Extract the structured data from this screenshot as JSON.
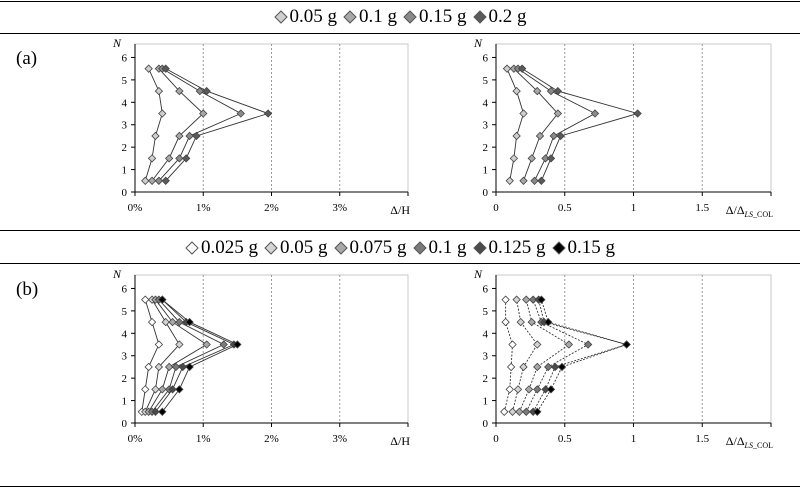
{
  "panels": [
    {
      "label": "(a)",
      "legend": [
        {
          "name": "0.05 g",
          "fill": "#cfcfcf"
        },
        {
          "name": "0.1 g",
          "fill": "#a8a8a8"
        },
        {
          "name": "0.15 g",
          "fill": "#8a8a8a"
        },
        {
          "name": "0.2 g",
          "fill": "#5a5a5a"
        }
      ]
    },
    {
      "label": "(b)",
      "legend": [
        {
          "name": "0.025 g",
          "fill": "#ffffff"
        },
        {
          "name": "0.05 g",
          "fill": "#d3d3d3"
        },
        {
          "name": "0.075 g",
          "fill": "#a8a8a8"
        },
        {
          "name": "0.1 g",
          "fill": "#7a7a7a"
        },
        {
          "name": "0.125 g",
          "fill": "#4a4a4a"
        },
        {
          "name": "0.15 g",
          "fill": "#000000"
        }
      ]
    }
  ],
  "chart_data": [
    {
      "id": "a-left",
      "type": "line",
      "ylabel": "N",
      "xlabel": "Δ/H",
      "xlim": [
        0,
        4
      ],
      "ylim": [
        0,
        6.6
      ],
      "x_ticks": [
        0,
        1,
        2,
        3
      ],
      "x_tick_labels": [
        "0%",
        "1%",
        "2%",
        "3%"
      ],
      "y_ticks": [
        0,
        1,
        2,
        3,
        4,
        5,
        6
      ],
      "y_tick_labels": [
        "0",
        "1",
        "2",
        "3",
        "4",
        "5",
        "6"
      ],
      "grid_x": [
        1,
        2,
        3
      ],
      "y": [
        0.5,
        1.5,
        2.5,
        3.5,
        4.5,
        5.5
      ],
      "series": [
        {
          "name": "0.05 g",
          "fill": "#cfcfcf",
          "line": "solid",
          "x": [
            0.15,
            0.25,
            0.3,
            0.4,
            0.35,
            0.2
          ]
        },
        {
          "name": "0.1 g",
          "fill": "#a8a8a8",
          "line": "solid",
          "x": [
            0.25,
            0.5,
            0.65,
            1.0,
            0.65,
            0.35
          ]
        },
        {
          "name": "0.15 g",
          "fill": "#8a8a8a",
          "line": "solid",
          "x": [
            0.35,
            0.65,
            0.8,
            1.55,
            0.95,
            0.4
          ]
        },
        {
          "name": "0.2 g",
          "fill": "#5a5a5a",
          "line": "solid",
          "x": [
            0.45,
            0.75,
            0.9,
            1.95,
            1.05,
            0.45
          ]
        }
      ]
    },
    {
      "id": "a-right",
      "type": "line",
      "ylabel": "N",
      "xlabel": "Δ/Δ",
      "xlabel_sub": "LS_COL",
      "xlim": [
        0,
        2
      ],
      "ylim": [
        0,
        6.6
      ],
      "x_ticks": [
        0,
        0.5,
        1,
        1.5
      ],
      "x_tick_labels": [
        "0",
        "0.5",
        "1",
        "1.5"
      ],
      "y_ticks": [
        0,
        1,
        2,
        3,
        4,
        5,
        6
      ],
      "y_tick_labels": [
        "0",
        "1",
        "2",
        "3",
        "4",
        "5",
        "6"
      ],
      "grid_x": [
        0.5,
        1,
        1.5
      ],
      "y": [
        0.5,
        1.5,
        2.5,
        3.5,
        4.5,
        5.5
      ],
      "series": [
        {
          "name": "0.05 g",
          "fill": "#cfcfcf",
          "line": "solid",
          "x": [
            0.1,
            0.13,
            0.15,
            0.2,
            0.15,
            0.08
          ]
        },
        {
          "name": "0.1 g",
          "fill": "#a8a8a8",
          "line": "solid",
          "x": [
            0.2,
            0.26,
            0.32,
            0.45,
            0.3,
            0.13
          ]
        },
        {
          "name": "0.15 g",
          "fill": "#8a8a8a",
          "line": "solid",
          "x": [
            0.28,
            0.36,
            0.42,
            0.72,
            0.4,
            0.16
          ]
        },
        {
          "name": "0.2 g",
          "fill": "#5a5a5a",
          "line": "solid",
          "x": [
            0.33,
            0.4,
            0.47,
            1.03,
            0.45,
            0.19
          ]
        }
      ]
    },
    {
      "id": "b-left",
      "type": "line",
      "ylabel": "N",
      "xlabel": "Δ/H",
      "xlim": [
        0,
        4
      ],
      "ylim": [
        0,
        6.6
      ],
      "x_ticks": [
        0,
        1,
        2,
        3
      ],
      "x_tick_labels": [
        "0%",
        "1%",
        "2%",
        "3%"
      ],
      "y_ticks": [
        0,
        1,
        2,
        3,
        4,
        5,
        6
      ],
      "y_tick_labels": [
        "0",
        "1",
        "2",
        "3",
        "4",
        "5",
        "6"
      ],
      "grid_x": [
        1,
        2,
        3
      ],
      "y": [
        0.5,
        1.5,
        2.5,
        3.5,
        4.5,
        5.5
      ],
      "series": [
        {
          "name": "0.025 g",
          "fill": "#ffffff",
          "line": "solid",
          "x": [
            0.1,
            0.15,
            0.2,
            0.35,
            0.25,
            0.15
          ]
        },
        {
          "name": "0.05 g",
          "fill": "#d3d3d3",
          "line": "solid",
          "x": [
            0.15,
            0.3,
            0.35,
            0.65,
            0.45,
            0.25
          ]
        },
        {
          "name": "0.075 g",
          "fill": "#a8a8a8",
          "line": "solid",
          "x": [
            0.2,
            0.4,
            0.5,
            1.05,
            0.55,
            0.3
          ]
        },
        {
          "name": "0.1 g",
          "fill": "#7a7a7a",
          "line": "solid",
          "x": [
            0.25,
            0.5,
            0.6,
            1.3,
            0.65,
            0.35
          ]
        },
        {
          "name": "0.125 g",
          "fill": "#4a4a4a",
          "line": "solid",
          "x": [
            0.3,
            0.55,
            0.7,
            1.45,
            0.75,
            0.4
          ]
        },
        {
          "name": "0.15 g",
          "fill": "#000000",
          "line": "solid",
          "x": [
            0.4,
            0.65,
            0.8,
            1.5,
            0.8,
            0.4
          ]
        }
      ]
    },
    {
      "id": "b-right",
      "type": "line",
      "ylabel": "N",
      "xlabel": "Δ/Δ",
      "xlabel_sub": "LS_COL",
      "xlim": [
        0,
        2
      ],
      "ylim": [
        0,
        6.6
      ],
      "x_ticks": [
        0,
        0.5,
        1,
        1.5
      ],
      "x_tick_labels": [
        "0",
        "0.5",
        "1",
        "1.5"
      ],
      "y_ticks": [
        0,
        1,
        2,
        3,
        4,
        5,
        6
      ],
      "y_tick_labels": [
        "0",
        "1",
        "2",
        "3",
        "4",
        "5",
        "6"
      ],
      "grid_x": [
        0.5,
        1,
        1.5
      ],
      "y": [
        0.5,
        1.5,
        2.5,
        3.5,
        4.5,
        5.5
      ],
      "series": [
        {
          "name": "0.025 g",
          "fill": "#ffffff",
          "line": "dashed",
          "x": [
            0.06,
            0.1,
            0.11,
            0.12,
            0.07,
            0.07
          ]
        },
        {
          "name": "0.05 g",
          "fill": "#d3d3d3",
          "line": "dashed",
          "x": [
            0.12,
            0.16,
            0.2,
            0.3,
            0.18,
            0.15
          ]
        },
        {
          "name": "0.075 g",
          "fill": "#a8a8a8",
          "line": "dashed",
          "x": [
            0.17,
            0.24,
            0.3,
            0.53,
            0.26,
            0.22
          ]
        },
        {
          "name": "0.1 g",
          "fill": "#7a7a7a",
          "line": "dashed",
          "x": [
            0.22,
            0.3,
            0.38,
            0.67,
            0.33,
            0.27
          ]
        },
        {
          "name": "0.125 g",
          "fill": "#4a4a4a",
          "line": "dashed",
          "x": [
            0.27,
            0.36,
            0.43,
            0.95,
            0.35,
            0.31
          ]
        },
        {
          "name": "0.15 g",
          "fill": "#000000",
          "line": "dashed",
          "x": [
            0.3,
            0.4,
            0.48,
            0.95,
            0.38,
            0.33
          ]
        }
      ]
    }
  ]
}
